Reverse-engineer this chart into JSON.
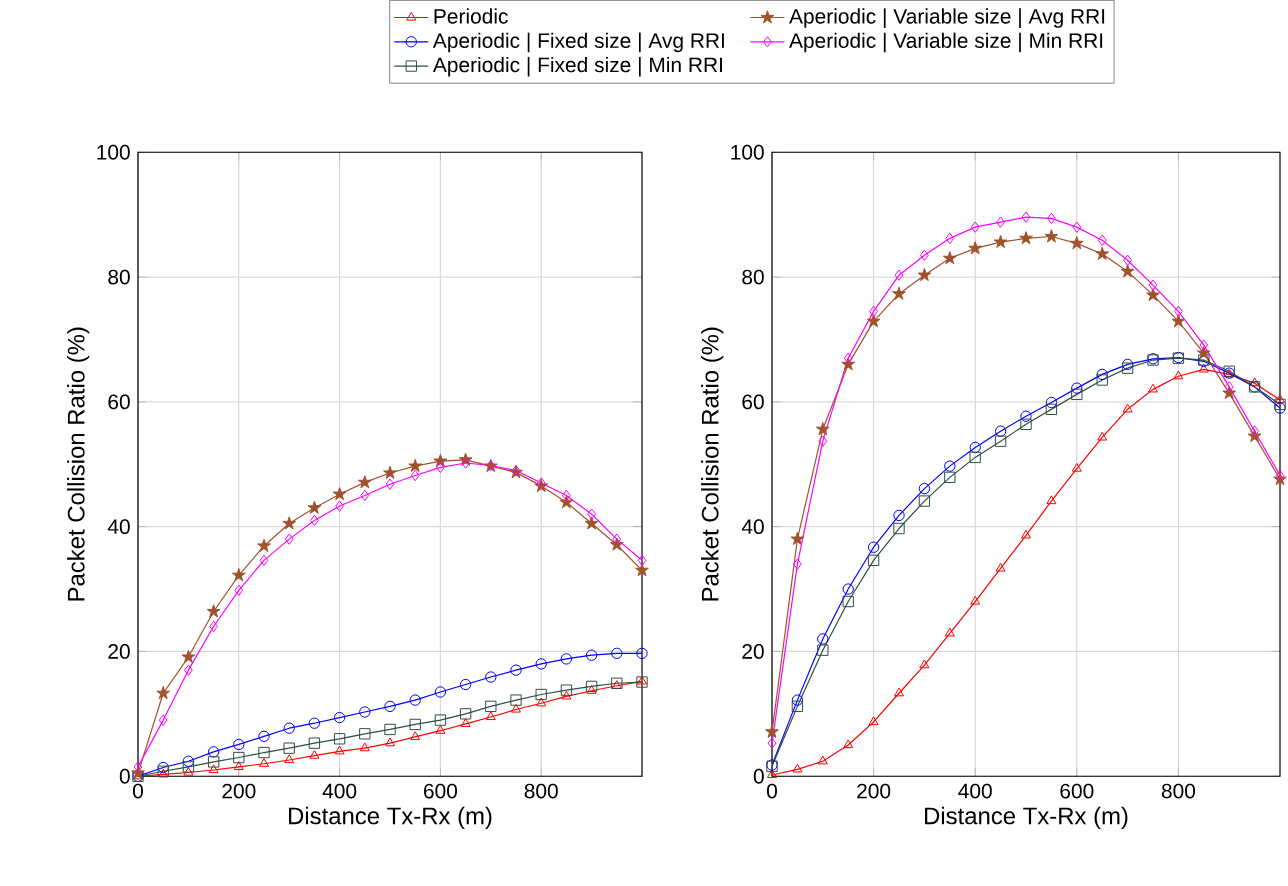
{
  "chart_data": [
    {
      "type": "line",
      "xlabel": "Distance Tx-Rx (m)",
      "ylabel": "Packet Collision Ratio (%)",
      "x": [
        0,
        50,
        100,
        150,
        200,
        250,
        300,
        350,
        400,
        450,
        500,
        550,
        600,
        650,
        700,
        750,
        800,
        850,
        900,
        950,
        1000
      ],
      "xlim": [
        0,
        1000
      ],
      "ylim": [
        0,
        100
      ],
      "xticks": [
        0,
        200,
        400,
        600,
        800
      ],
      "yticks": [
        0,
        20,
        40,
        60,
        80,
        100
      ],
      "grid": true,
      "legend": "top",
      "line_style": "solid",
      "series": [
        {
          "name": "Periodic",
          "color": "#ff0000",
          "marker": "triangle",
          "values": [
            0,
            0.3,
            0.6,
            1,
            1.5,
            2,
            2.6,
            3.3,
            4,
            4.5,
            5.3,
            6.3,
            7.3,
            8.4,
            9.5,
            10.7,
            11.7,
            12.8,
            13.7,
            14.5,
            15.2
          ]
        },
        {
          "name": "Aperiodic | Fixed size | Avg RRI",
          "color": "#0000ff",
          "marker": "circle",
          "values": [
            0,
            1.4,
            2.4,
            3.9,
            5.1,
            6.4,
            7.7,
            8.5,
            9.4,
            10.3,
            11.2,
            12.2,
            13.5,
            14.7,
            15.9,
            17,
            18,
            18.8,
            19.4,
            19.7,
            19.7
          ]
        },
        {
          "name": "Aperiodic | Fixed size | Min RRI",
          "color": "#2f4f3f",
          "marker": "square",
          "values": [
            0,
            0.8,
            1.5,
            2.3,
            3,
            3.8,
            4.5,
            5.3,
            6,
            6.8,
            7.5,
            8.3,
            9,
            10,
            11.2,
            12.2,
            13.1,
            13.8,
            14.4,
            14.9,
            15.1
          ]
        },
        {
          "name": "Aperiodic | Variable size | Avg RRI",
          "color": "#a0522d",
          "marker": "star",
          "values": [
            0.5,
            13.3,
            19.1,
            26.4,
            32.2,
            36.9,
            40.5,
            43,
            45.2,
            47.1,
            48.6,
            49.7,
            50.5,
            50.7,
            49.7,
            48.7,
            46.5,
            43.9,
            40.5,
            37.1,
            33
          ]
        },
        {
          "name": "Aperiodic | Variable size | Min RRI",
          "color": "#ff00ff",
          "marker": "diamond",
          "values": [
            1.5,
            9,
            17,
            24,
            29.8,
            34.6,
            38,
            41,
            43.3,
            45,
            46.8,
            48.2,
            49.5,
            50.2,
            49.8,
            49,
            47,
            45,
            42,
            38,
            34.6
          ]
        }
      ]
    },
    {
      "type": "line",
      "xlabel": "Distance Tx-Rx (m)",
      "ylabel": "Packet Collision Ratio (%)",
      "x": [
        0,
        50,
        100,
        150,
        200,
        250,
        300,
        350,
        400,
        450,
        500,
        550,
        600,
        650,
        700,
        750,
        800,
        850,
        900,
        950,
        1000
      ],
      "xlim": [
        0,
        1000
      ],
      "ylim": [
        0,
        100
      ],
      "xticks": [
        0,
        200,
        400,
        600,
        800
      ],
      "yticks": [
        0,
        20,
        40,
        60,
        80,
        100
      ],
      "grid": true,
      "line_style": "solid",
      "series": [
        {
          "color": "#ff0000",
          "marker": "triangle",
          "values": [
            0.2,
            1.1,
            2.4,
            5,
            8.7,
            13.3,
            17.8,
            22.9,
            28,
            33.3,
            38.6,
            44.1,
            49.3,
            54.3,
            58.8,
            62,
            64.1,
            65.2,
            64.4,
            63,
            60.3
          ]
        },
        {
          "color": "#0000ff",
          "marker": "circle",
          "values": [
            1.8,
            12.2,
            22,
            30,
            36.7,
            41.8,
            46.1,
            49.7,
            52.7,
            55.3,
            57.7,
            59.9,
            62.2,
            64.4,
            66,
            66.9,
            67.1,
            66.5,
            64.6,
            62.4,
            59
          ]
        },
        {
          "color": "#2f4f3f",
          "marker": "square",
          "values": [
            1.6,
            11.2,
            20.2,
            28,
            34.6,
            39.7,
            44.1,
            47.9,
            51.1,
            53.7,
            56.4,
            58.8,
            61.2,
            63.5,
            65.4,
            66.7,
            67,
            66.7,
            64.9,
            62.4,
            59.6
          ]
        },
        {
          "color": "#a0522d",
          "marker": "star",
          "values": [
            7.1,
            38,
            55.6,
            66,
            72.9,
            77.3,
            80.3,
            83,
            84.6,
            85.6,
            86.2,
            86.5,
            85.4,
            83.7,
            80.9,
            77.1,
            72.9,
            67.8,
            61.4,
            54.5,
            47.6
          ]
        },
        {
          "color": "#ff00ff",
          "marker": "diamond",
          "values": [
            5.3,
            34,
            53.7,
            67,
            74.5,
            80.3,
            83.5,
            86.2,
            88,
            88.8,
            89.6,
            89.4,
            88,
            85.9,
            82.7,
            78.7,
            74.5,
            69.1,
            62.4,
            55.3,
            48.2
          ]
        }
      ]
    }
  ]
}
